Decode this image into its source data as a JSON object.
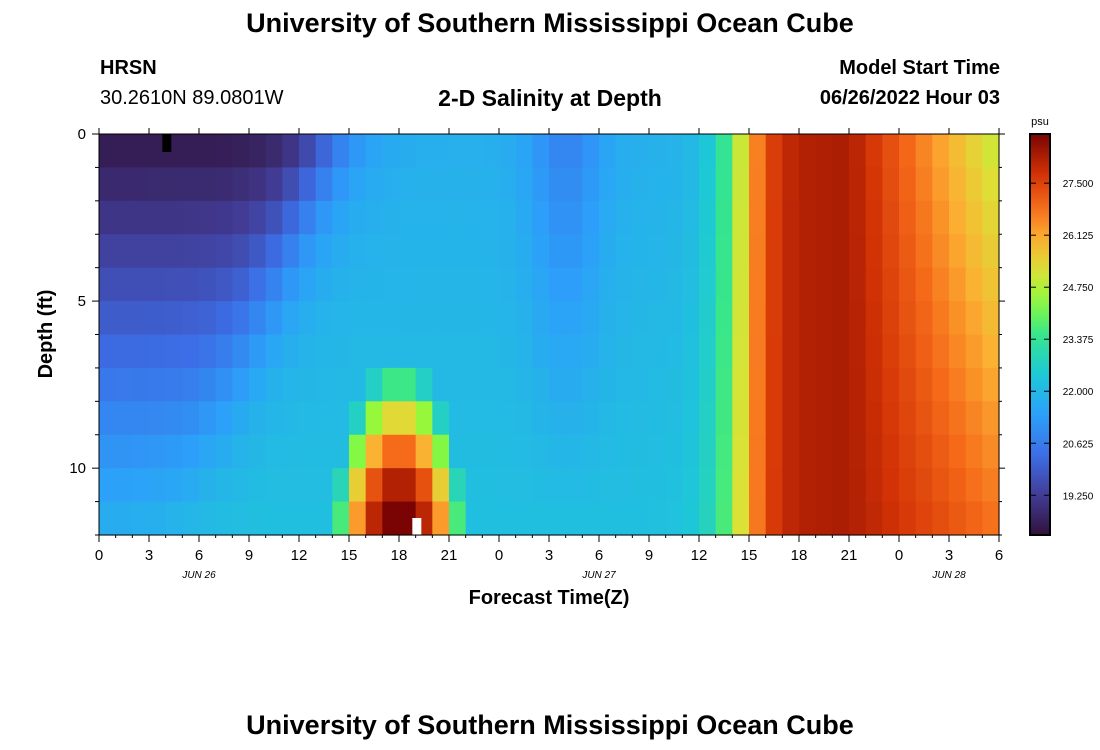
{
  "header": {
    "title": "University of Southern Mississippi Ocean Cube",
    "station": "HRSN",
    "coords": "30.2610N  89.0801W",
    "subtitle": "2-D Salinity at Depth",
    "model_label": "Model Start Time",
    "model_time": "06/26/2022 Hour 03"
  },
  "footer": {
    "title": "University of Southern Mississippi Ocean Cube"
  },
  "chart_data": {
    "type": "heatmap",
    "title": "2-D Salinity at Depth",
    "xlabel": "Forecast Time(Z)",
    "ylabel": "Depth (ft)",
    "colorbar_unit": "psu",
    "x_tick_labels": [
      "0",
      "3",
      "6",
      "9",
      "12",
      "15",
      "18",
      "21",
      "0",
      "3",
      "6",
      "9",
      "12",
      "15",
      "18",
      "21",
      "0",
      "3",
      "6"
    ],
    "date_labels": [
      {
        "label": "JUN 26",
        "hour_index": 6
      },
      {
        "label": "JUN 27",
        "hour_index": 30
      },
      {
        "label": "JUN 28",
        "hour_index": 51
      }
    ],
    "x_range_hours": [
      0,
      54
    ],
    "y_tick_labels": [
      "0",
      "5",
      "10"
    ],
    "ylim": [
      0,
      12
    ],
    "depth_levels": 12,
    "colorbar_ticks": [
      "27.500",
      "26.125",
      "24.750",
      "23.375",
      "22.000",
      "20.625",
      "19.250"
    ],
    "colorbar_tick_values": [
      27.5,
      26.125,
      24.75,
      23.375,
      22.0,
      20.625,
      19.25
    ],
    "value_range": [
      18.2,
      28.8
    ],
    "salinity_estimate": {
      "surface_min_psu": 18.5,
      "jun26_hour18_bottom_max_psu": 28.6,
      "jun27_hour18_max_psu": 28.2,
      "jun28_surface_psu": 24.8
    }
  }
}
